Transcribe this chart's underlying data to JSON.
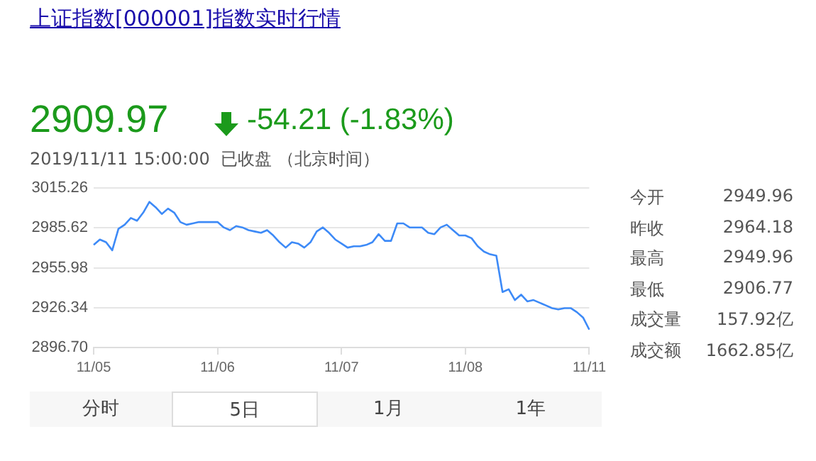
{
  "chart_data": {
    "type": "line",
    "title": "上证指数[000001]指数实时行情",
    "categories": [
      "11/05",
      null,
      null,
      null,
      null,
      null,
      null,
      null,
      null,
      null,
      null,
      null,
      null,
      null,
      null,
      null,
      null,
      null,
      null,
      null,
      "11/06",
      null,
      null,
      null,
      null,
      null,
      null,
      null,
      null,
      null,
      null,
      null,
      null,
      null,
      null,
      null,
      null,
      null,
      null,
      null,
      "11/07",
      null,
      null,
      null,
      null,
      null,
      null,
      null,
      null,
      null,
      null,
      null,
      null,
      null,
      null,
      null,
      null,
      null,
      null,
      null,
      "11/08",
      null,
      null,
      null,
      null,
      null,
      null,
      null,
      null,
      null,
      null,
      null,
      null,
      null,
      null,
      null,
      null,
      null,
      null,
      null,
      "11/11"
    ],
    "series": [
      {
        "color": "#3d8af7",
        "values": [
          2973,
          2977,
          2975,
          2969,
          2985,
          2988,
          2993,
          2991,
          2997,
          3005,
          3001,
          2996,
          3000,
          2997,
          2990,
          2988,
          2989,
          2990,
          2990,
          2990,
          2990,
          2986,
          2984,
          2987,
          2986,
          2984,
          2983,
          2982,
          2984,
          2980,
          2975,
          2971,
          2975,
          2974,
          2971,
          2975,
          2983,
          2986,
          2982,
          2977,
          2974,
          2971,
          2972,
          2972,
          2973,
          2975,
          2981,
          2976,
          2976,
          2989,
          2989,
          2986,
          2986,
          2986,
          2982,
          2981,
          2986,
          2988,
          2984,
          2980,
          2980,
          2978,
          2972,
          2968,
          2966,
          2965,
          2938,
          2940,
          2932,
          2936,
          2931,
          2932,
          2930,
          2928,
          2926,
          2925,
          2926,
          2926,
          2923,
          2919,
          2910
        ]
      }
    ],
    "ylim": [
      2896.7,
      3015.26
    ],
    "yticks": [
      {
        "value": 2896.7,
        "label": "2896.70"
      },
      2926.34,
      2955.98,
      2985.62,
      3015.26
    ],
    "grid": "y",
    "legend": false,
    "marker": "none",
    "line_style": "solid",
    "annotations": [
      "2909.97",
      "-54.21 (-1.83%)",
      "2019/11/11 15:00:00  已收盘 （北京时间）",
      "今开",
      "2949.96",
      "昨收",
      "2964.18",
      "最高",
      "2949.96",
      "最低",
      "2906.77",
      "成交量",
      "157.92亿",
      "成交额",
      "1662.85亿",
      "分时",
      "5日",
      "1月",
      "1年"
    ]
  }
}
